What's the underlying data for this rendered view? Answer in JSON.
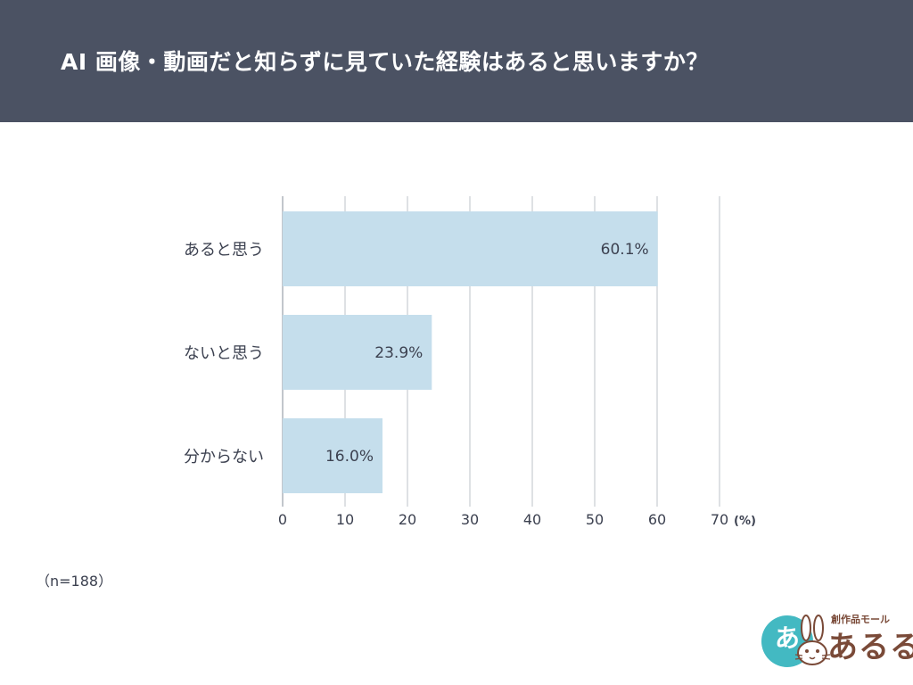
{
  "header": {
    "title": "AI 画像・動画だと知らずに見ていた経験はあると思いますか？",
    "background": "#4b5263"
  },
  "chart_data": {
    "type": "bar",
    "orientation": "horizontal",
    "categories": [
      "あると思う",
      "ないと思う",
      "分からない"
    ],
    "values": [
      60.1,
      23.9,
      16.0
    ],
    "value_labels": [
      "60.1%",
      "23.9%",
      "16.0%"
    ],
    "xlim": [
      0,
      70
    ],
    "ticks": [
      0,
      10,
      20,
      30,
      40,
      50,
      60,
      70
    ],
    "unit_label": "(%)",
    "grid": true,
    "bar_color": "#c5deec"
  },
  "footer": {
    "sample_size": "（n=188）"
  },
  "logo": {
    "badge_glyph": "あ",
    "tagline": "創作品モール",
    "name": "あるる"
  }
}
